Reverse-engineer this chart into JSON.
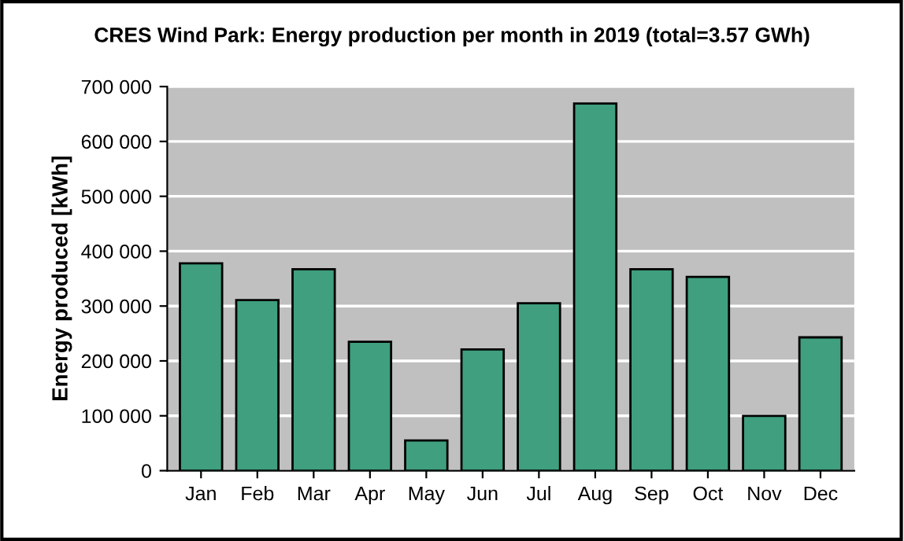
{
  "chart_data": {
    "type": "bar",
    "title": "CRES Wind Park: Energy production per month in 2019 (total=3.57 GWh)",
    "ylabel": "Energy produced [kWh]",
    "categories": [
      "Jan",
      "Feb",
      "Mar",
      "Apr",
      "May",
      "Jun",
      "Jul",
      "Aug",
      "Sep",
      "Oct",
      "Nov",
      "Dec"
    ],
    "values": [
      378000,
      311000,
      367000,
      235000,
      55000,
      221000,
      305000,
      669000,
      367000,
      353000,
      100000,
      243000
    ],
    "color": "#3f9f7f",
    "ylim": [
      0,
      700000
    ],
    "yticks": [
      {
        "value": 0,
        "label": "0"
      },
      {
        "value": 100000,
        "label": "100 000"
      },
      {
        "value": 200000,
        "label": "200 000"
      },
      {
        "value": 300000,
        "label": "300 000"
      },
      {
        "value": 400000,
        "label": "400 000"
      },
      {
        "value": 500000,
        "label": "500 000"
      },
      {
        "value": 600000,
        "label": "600 000"
      },
      {
        "value": 700000,
        "label": "700 000"
      }
    ],
    "grid": "y",
    "legend": false
  }
}
